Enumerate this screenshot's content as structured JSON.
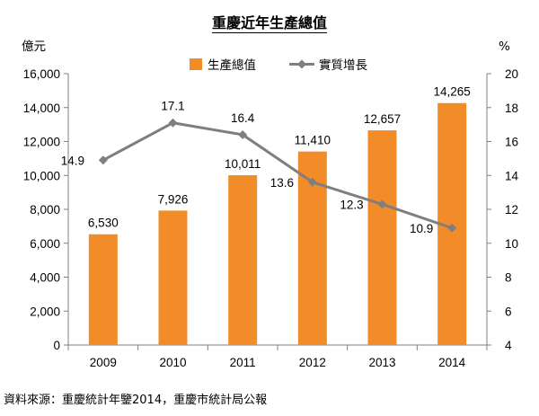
{
  "title": "重慶近年生產總值",
  "source": "資料來源：重慶統計年鑒2014，重慶市統計局公報",
  "chart_data": {
    "type": "bar",
    "categories": [
      "2009",
      "2010",
      "2011",
      "2012",
      "2013",
      "2014"
    ],
    "series": [
      {
        "name": "生產總值",
        "type": "bar",
        "axis": "left",
        "color": "#F28C28",
        "values": [
          6530,
          7926,
          10011,
          11410,
          12657,
          14265
        ],
        "labels": [
          "6,530",
          "7,926",
          "10,011",
          "11,410",
          "12,657",
          "14,265"
        ]
      },
      {
        "name": "實質增長",
        "type": "line",
        "axis": "right",
        "color": "#7F7F7F",
        "values": [
          14.9,
          17.1,
          16.4,
          13.6,
          12.3,
          10.9
        ],
        "labels": [
          "14.9",
          "17.1",
          "16.4",
          "13.6",
          "12.3",
          "10.9"
        ]
      }
    ],
    "left_axis": {
      "unit": "億元",
      "min": 0,
      "max": 16000,
      "ticks": [
        0,
        2000,
        4000,
        6000,
        8000,
        10000,
        12000,
        14000,
        16000
      ],
      "tick_labels": [
        "0",
        "2,000",
        "4,000",
        "6,000",
        "8,000",
        "10,000",
        "12,000",
        "14,000",
        "16,000"
      ]
    },
    "right_axis": {
      "unit": "%",
      "min": 4,
      "max": 20,
      "ticks": [
        4,
        6,
        8,
        10,
        12,
        14,
        16,
        18,
        20
      ],
      "tick_labels": [
        "4",
        "6",
        "8",
        "10",
        "12",
        "14",
        "16",
        "18",
        "20"
      ]
    },
    "legend_position": "top",
    "grid": false
  }
}
